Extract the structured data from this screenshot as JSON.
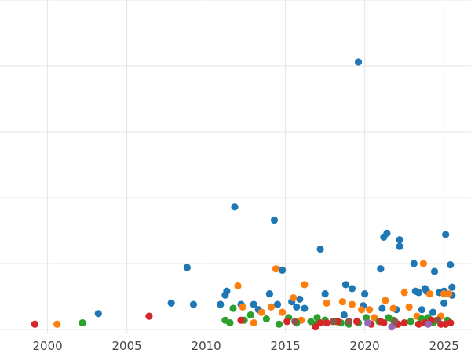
{
  "chart_data": {
    "type": "scatter",
    "title": "",
    "xlabel": "",
    "ylabel": "",
    "xlim": [
      1997.0,
      2026.7
    ],
    "ylim": [
      -0.3,
      25.0
    ],
    "x_ticks": [
      2000,
      2005,
      2010,
      2015,
      2020,
      2025
    ],
    "x_tick_labels": [
      "2000",
      "2005",
      "2010",
      "2015",
      "2020",
      "2025"
    ],
    "y_gridlines": [
      0,
      5,
      10,
      15,
      20,
      25
    ],
    "grid": true,
    "legend": "none",
    "series": [
      {
        "color": "#1f77b4",
        "points": [
          [
            2003.2,
            1.2
          ],
          [
            2007.8,
            2.0
          ],
          [
            2008.8,
            4.7
          ],
          [
            2009.2,
            1.9
          ],
          [
            2010.9,
            1.9
          ],
          [
            2011.2,
            2.6
          ],
          [
            2011.3,
            2.9
          ],
          [
            2011.8,
            9.3
          ],
          [
            2012.2,
            1.9
          ],
          [
            2013.0,
            1.9
          ],
          [
            2013.3,
            1.5
          ],
          [
            2014.0,
            2.7
          ],
          [
            2014.3,
            8.3
          ],
          [
            2014.5,
            1.9
          ],
          [
            2014.8,
            4.5
          ],
          [
            2015.4,
            2.1
          ],
          [
            2015.7,
            1.7
          ],
          [
            2015.9,
            2.3
          ],
          [
            2016.2,
            1.6
          ],
          [
            2017.2,
            6.1
          ],
          [
            2017.5,
            2.7
          ],
          [
            2018.8,
            3.4
          ],
          [
            2019.2,
            3.1
          ],
          [
            2019.6,
            20.3
          ],
          [
            2019.9,
            1.8
          ],
          [
            2020.0,
            2.7
          ],
          [
            2021.0,
            4.6
          ],
          [
            2021.1,
            1.6
          ],
          [
            2021.2,
            7.0
          ],
          [
            2021.4,
            7.3
          ],
          [
            2022.2,
            6.3
          ],
          [
            2022.2,
            6.8
          ],
          [
            2023.1,
            5.0
          ],
          [
            2023.2,
            2.9
          ],
          [
            2023.4,
            2.8
          ],
          [
            2023.8,
            3.1
          ],
          [
            2023.9,
            2.9
          ],
          [
            2024.3,
            1.3
          ],
          [
            2024.4,
            4.4
          ],
          [
            2024.7,
            2.8
          ],
          [
            2025.0,
            2.9
          ],
          [
            2025.1,
            7.2
          ],
          [
            2025.4,
            4.9
          ],
          [
            2025.5,
            3.2
          ],
          [
            2025.5,
            2.6
          ],
          [
            2025.0,
            2.0
          ],
          [
            2023.6,
            1.5
          ],
          [
            2022.0,
            1.5
          ],
          [
            2018.7,
            1.1
          ]
        ]
      },
      {
        "color": "#ff7f0e",
        "points": [
          [
            2000.6,
            0.4
          ],
          [
            2012.0,
            3.3
          ],
          [
            2012.3,
            1.7
          ],
          [
            2013.0,
            0.5
          ],
          [
            2013.5,
            1.3
          ],
          [
            2014.1,
            1.7
          ],
          [
            2014.4,
            4.6
          ],
          [
            2014.8,
            1.3
          ],
          [
            2015.5,
            2.4
          ],
          [
            2016.2,
            3.4
          ],
          [
            2017.6,
            2.0
          ],
          [
            2018.6,
            2.1
          ],
          [
            2019.2,
            1.9
          ],
          [
            2019.8,
            1.5
          ],
          [
            2020.3,
            1.5
          ],
          [
            2021.3,
            2.2
          ],
          [
            2021.8,
            1.6
          ],
          [
            2022.5,
            2.8
          ],
          [
            2022.8,
            1.7
          ],
          [
            2023.3,
            1.0
          ],
          [
            2023.7,
            5.0
          ],
          [
            2024.1,
            2.7
          ],
          [
            2024.8,
            1.0
          ],
          [
            2025.0,
            2.7
          ],
          [
            2025.3,
            2.7
          ],
          [
            2016.0,
            0.7
          ],
          [
            2020.6,
            0.9
          ],
          [
            2024.5,
            0.7
          ]
        ]
      },
      {
        "color": "#2ca02c",
        "points": [
          [
            2002.2,
            0.5
          ],
          [
            2011.2,
            0.7
          ],
          [
            2011.5,
            0.5
          ],
          [
            2011.7,
            1.6
          ],
          [
            2012.4,
            0.7
          ],
          [
            2012.8,
            1.1
          ],
          [
            2013.8,
            0.8
          ],
          [
            2014.6,
            0.4
          ],
          [
            2015.2,
            0.9
          ],
          [
            2015.7,
            0.5
          ],
          [
            2016.6,
            0.6
          ],
          [
            2017.0,
            0.9
          ],
          [
            2017.5,
            0.7
          ],
          [
            2018.5,
            0.5
          ],
          [
            2019.0,
            0.4
          ],
          [
            2019.6,
            0.5
          ],
          [
            2020.1,
            0.9
          ],
          [
            2020.9,
            0.6
          ],
          [
            2021.5,
            0.9
          ],
          [
            2021.8,
            0.7
          ],
          [
            2022.9,
            0.6
          ],
          [
            2023.6,
            0.8
          ],
          [
            2024.3,
            0.5
          ],
          [
            2025.2,
            0.7
          ],
          [
            2016.9,
            0.4
          ],
          [
            2018.2,
            0.6
          ],
          [
            2022.0,
            0.4
          ],
          [
            2024.0,
            0.9
          ]
        ]
      },
      {
        "color": "#d62728",
        "points": [
          [
            1999.2,
            0.4
          ],
          [
            2006.4,
            1.0
          ],
          [
            2012.2,
            0.7
          ],
          [
            2015.1,
            0.6
          ],
          [
            2016.9,
            0.2
          ],
          [
            2017.6,
            0.5
          ],
          [
            2018.3,
            0.6
          ],
          [
            2019.5,
            0.6
          ],
          [
            2020.4,
            0.4
          ],
          [
            2021.2,
            0.5
          ],
          [
            2022.1,
            0.4
          ],
          [
            2022.5,
            0.5
          ],
          [
            2023.4,
            0.4
          ],
          [
            2023.8,
            0.5
          ],
          [
            2024.2,
            0.7
          ],
          [
            2024.8,
            0.4
          ],
          [
            2025.1,
            0.4
          ],
          [
            2025.4,
            0.5
          ],
          [
            2017.2,
            0.5
          ],
          [
            2021.0,
            0.6
          ]
        ]
      },
      {
        "color": "#9467bd",
        "points": [
          [
            2020.2,
            0.5
          ],
          [
            2021.7,
            0.2
          ],
          [
            2024.0,
            0.4
          ]
        ]
      },
      {
        "color": "#8c564b",
        "points": [
          [
            2015.6,
            0.6
          ],
          [
            2018.0,
            0.6
          ],
          [
            2019.0,
            0.6
          ],
          [
            2024.6,
            0.7
          ],
          [
            2021.9,
            0.6
          ]
        ]
      }
    ]
  }
}
